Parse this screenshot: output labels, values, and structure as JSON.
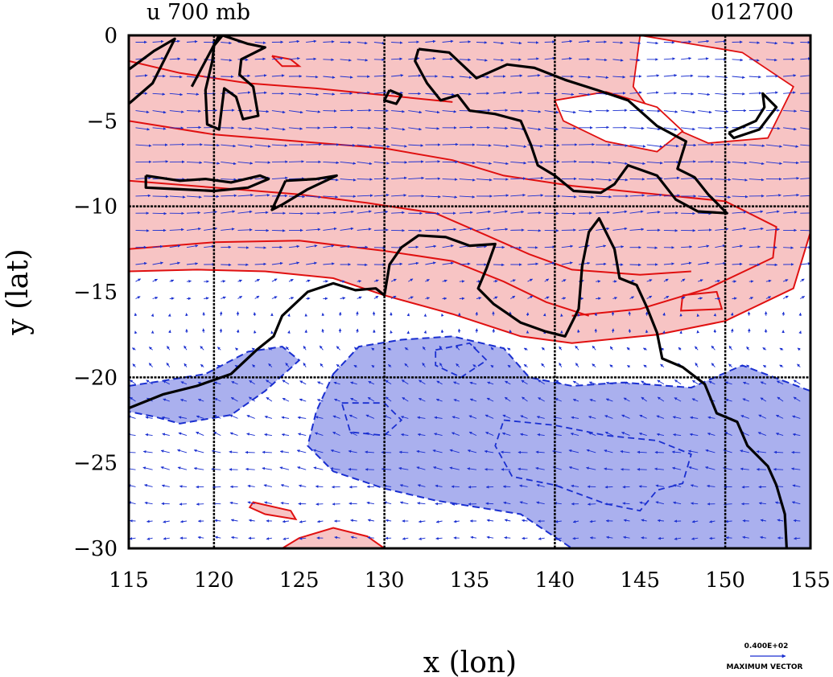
{
  "chart_data": {
    "type": "contour-vector-map",
    "title": "u 700 mb",
    "date_label": "012700",
    "xlabel": "x (lon)",
    "ylabel": "y (lat)",
    "xlim": [
      115,
      155
    ],
    "ylim": [
      -30,
      0
    ],
    "x_ticks": [
      115,
      120,
      125,
      130,
      135,
      140,
      145,
      150,
      155
    ],
    "x_tick_labels": [
      "115",
      "120",
      "125",
      "130",
      "135",
      "140",
      "145",
      "150",
      "155"
    ],
    "y_ticks": [
      0,
      -5,
      -10,
      -15,
      -20,
      -25,
      -30
    ],
    "y_tick_labels": [
      "0",
      "−5",
      "−10",
      "−15",
      "−20",
      "−25",
      "−30"
    ],
    "gridlines_x": [
      120,
      130,
      140,
      150
    ],
    "gridlines_y": [
      -10,
      -20
    ],
    "grid": true,
    "legend": {
      "vector_magnitude": "0.400E+02",
      "vector_label": "MAXIMUM VECTOR",
      "placement": "bottom-right"
    },
    "colors": {
      "positive_fill": "#f7c4c4",
      "positive_contour": "#e01010",
      "negative_fill": "#aab0ee",
      "negative_contour": "#1a2fd0",
      "vectors": "#1a2fd0",
      "coastline": "#000000",
      "grid": "#000000"
    },
    "positive_region": [
      [
        115,
        0
      ],
      [
        155,
        0
      ],
      [
        155,
        -11.5
      ],
      [
        154,
        -14.8
      ],
      [
        150,
        -16.7
      ],
      [
        146,
        -17.5
      ],
      [
        141,
        -18
      ],
      [
        138,
        -17.6
      ],
      [
        134,
        -16.3
      ],
      [
        130,
        -15.2
      ],
      [
        127,
        -14.2
      ],
      [
        123,
        -13.8
      ],
      [
        119,
        -13.7
      ],
      [
        115,
        -13.8
      ]
    ],
    "positive_patches": [
      [
        [
          145,
          0
        ],
        [
          151,
          -1
        ],
        [
          154,
          -3
        ],
        [
          152.5,
          -6
        ],
        [
          149,
          -6.3
        ],
        [
          146,
          -5
        ],
        [
          144.6,
          -3
        ]
      ],
      [
        [
          140,
          -3.8
        ],
        [
          143,
          -3.3
        ],
        [
          146,
          -4.2
        ],
        [
          147.5,
          -5.6
        ],
        [
          146,
          -6.8
        ],
        [
          143,
          -6.2
        ],
        [
          140.5,
          -5
        ]
      ]
    ],
    "negative_region": [
      [
        115,
        -20.5
      ],
      [
        117,
        -20.2
      ],
      [
        119.5,
        -19.8
      ],
      [
        122,
        -18.5
      ],
      [
        124,
        -18.2
      ],
      [
        125,
        -19
      ],
      [
        123,
        -20.8
      ],
      [
        121,
        -22.2
      ],
      [
        118,
        -22.7
      ],
      [
        116.5,
        -22.3
      ],
      [
        115,
        -22
      ]
    ],
    "negative_region_2": [
      [
        127,
        -19.8
      ],
      [
        128.5,
        -18.2
      ],
      [
        131,
        -17.8
      ],
      [
        134,
        -17.6
      ],
      [
        137,
        -18.3
      ],
      [
        138.5,
        -20
      ],
      [
        141,
        -20.5
      ],
      [
        144,
        -20.3
      ],
      [
        148,
        -20.6
      ],
      [
        151,
        -19.3
      ],
      [
        155,
        -20.8
      ],
      [
        155,
        -30
      ],
      [
        141,
        -30
      ],
      [
        138,
        -28
      ],
      [
        133,
        -27.2
      ],
      [
        130,
        -26.5
      ],
      [
        127,
        -25.5
      ],
      [
        125.5,
        -24
      ],
      [
        126,
        -22
      ]
    ],
    "positive_small": [
      [
        [
          122.3,
          -27.3
        ],
        [
          124.5,
          -27.8
        ],
        [
          124.8,
          -28.3
        ],
        [
          123,
          -28
        ],
        [
          122.1,
          -27.6
        ]
      ],
      [
        [
          124,
          -30
        ],
        [
          125,
          -29.4
        ],
        [
          127,
          -28.8
        ],
        [
          129,
          -29.3
        ],
        [
          130,
          -30
        ]
      ]
    ],
    "extra_red_contours": [
      [
        [
          115,
          -1.5
        ],
        [
          118,
          -2.2
        ],
        [
          122,
          -2.8
        ],
        [
          126,
          -3.1
        ],
        [
          130,
          -3.5
        ],
        [
          134,
          -3.9
        ]
      ],
      [
        [
          115,
          -5
        ],
        [
          120,
          -5.8
        ],
        [
          125,
          -6.2
        ],
        [
          130,
          -6.6
        ],
        [
          134,
          -7.3
        ],
        [
          137,
          -8.2
        ],
        [
          141,
          -8.8
        ],
        [
          146,
          -9.3
        ],
        [
          150,
          -9.7
        ],
        [
          153,
          -11.2
        ],
        [
          152.8,
          -13
        ],
        [
          149,
          -14.8
        ],
        [
          145,
          -16
        ],
        [
          141,
          -16.4
        ]
      ],
      [
        [
          115,
          -8.5
        ],
        [
          120,
          -8.9
        ],
        [
          125,
          -9.3
        ],
        [
          129,
          -9.8
        ],
        [
          133,
          -10.4
        ],
        [
          136,
          -11.7
        ],
        [
          138.5,
          -12.8
        ],
        [
          141,
          -13.7
        ],
        [
          145,
          -14
        ],
        [
          148,
          -13.8
        ]
      ],
      [
        [
          115,
          -12.5
        ],
        [
          120,
          -12.1
        ],
        [
          125,
          -12
        ],
        [
          130,
          -12.6
        ],
        [
          134,
          -13.2
        ],
        [
          137,
          -14.4
        ],
        [
          139.5,
          -15.6
        ],
        [
          142,
          -16.4
        ]
      ],
      [
        [
          147.5,
          -15.2
        ],
        [
          149.5,
          -15
        ],
        [
          149.8,
          -16
        ],
        [
          147.4,
          -16.1
        ],
        [
          147.5,
          -15.2
        ]
      ],
      [
        [
          123.4,
          -1.2
        ],
        [
          124.5,
          -1.4
        ],
        [
          125,
          -1.8
        ],
        [
          124,
          -1.8
        ],
        [
          123.4,
          -1.2
        ]
      ]
    ],
    "extra_blue_contours": [
      [
        [
          133,
          -18.4
        ],
        [
          135,
          -18
        ],
        [
          136,
          -19
        ],
        [
          134.5,
          -20
        ],
        [
          133,
          -19.3
        ],
        [
          133,
          -18.4
        ]
      ],
      [
        [
          137,
          -22.5
        ],
        [
          140,
          -22.8
        ],
        [
          143,
          -23.4
        ],
        [
          146,
          -23.7
        ],
        [
          148,
          -24.5
        ],
        [
          147.5,
          -26.2
        ],
        [
          146,
          -26.6
        ],
        [
          145,
          -27.8
        ],
        [
          143,
          -27.4
        ],
        [
          140,
          -26.3
        ],
        [
          137.5,
          -25.8
        ],
        [
          136.5,
          -24
        ],
        [
          137,
          -22.5
        ]
      ],
      [
        [
          127.5,
          -21.5
        ],
        [
          130,
          -21.5
        ],
        [
          131,
          -22.5
        ],
        [
          130,
          -23.4
        ],
        [
          128,
          -23.2
        ],
        [
          127.5,
          -21.5
        ]
      ]
    ],
    "coastlines": [
      [
        [
          115,
          -21.8
        ],
        [
          117,
          -21
        ],
        [
          119,
          -20.5
        ],
        [
          121,
          -19.8
        ],
        [
          122.5,
          -18.4
        ],
        [
          123.5,
          -17.6
        ],
        [
          124,
          -16.4
        ],
        [
          125.5,
          -15
        ],
        [
          127,
          -14.5
        ],
        [
          128.3,
          -14.9
        ],
        [
          129.5,
          -14.8
        ],
        [
          130,
          -15.2
        ],
        [
          130.3,
          -13.4
        ],
        [
          131,
          -12.4
        ],
        [
          132,
          -11.7
        ],
        [
          133.6,
          -11.8
        ],
        [
          135,
          -12.3
        ],
        [
          136.5,
          -12.2
        ],
        [
          136,
          -13.6
        ],
        [
          135.5,
          -14.8
        ],
        [
          136.4,
          -15.7
        ],
        [
          138,
          -16.8
        ],
        [
          139.4,
          -17.3
        ],
        [
          140.6,
          -17.6
        ],
        [
          141.4,
          -16
        ],
        [
          141.6,
          -13.5
        ],
        [
          142,
          -11.5
        ],
        [
          142.6,
          -10.7
        ],
        [
          143.5,
          -12.5
        ],
        [
          143.8,
          -14.2
        ],
        [
          144.8,
          -14.6
        ],
        [
          145.4,
          -15.9
        ],
        [
          146,
          -17.4
        ],
        [
          146.3,
          -18.9
        ],
        [
          147.5,
          -19.4
        ],
        [
          148.8,
          -20.4
        ],
        [
          149.5,
          -22.1
        ],
        [
          150.7,
          -22.6
        ],
        [
          151.3,
          -24
        ],
        [
          152.5,
          -25.2
        ],
        [
          153,
          -26.3
        ],
        [
          153.5,
          -28
        ],
        [
          153.6,
          -30
        ]
      ],
      [
        [
          124.2,
          -8.5
        ],
        [
          126,
          -8.4
        ],
        [
          127.2,
          -8.2
        ],
        [
          125.5,
          -9
        ],
        [
          124,
          -9.9
        ],
        [
          123.4,
          -10.2
        ],
        [
          124.2,
          -8.5
        ]
      ],
      [
        [
          116,
          -8.2
        ],
        [
          118,
          -8.5
        ],
        [
          119.5,
          -8.4
        ],
        [
          121,
          -8.6
        ],
        [
          122.7,
          -8.2
        ],
        [
          123.2,
          -8.4
        ],
        [
          122,
          -8.9
        ],
        [
          120,
          -9.1
        ],
        [
          118,
          -9
        ],
        [
          116,
          -8.9
        ],
        [
          116,
          -8.2
        ]
      ],
      [
        [
          120,
          -0.6
        ],
        [
          120.5,
          0
        ],
        [
          122,
          -0.5
        ],
        [
          123,
          -0.7
        ],
        [
          121.6,
          -1.4
        ],
        [
          121.5,
          -2.3
        ],
        [
          122.3,
          -3
        ],
        [
          122.6,
          -4.7
        ],
        [
          121.7,
          -4.9
        ],
        [
          121.3,
          -3.6
        ],
        [
          120.6,
          -3.1
        ],
        [
          120.3,
          -5.5
        ],
        [
          119.6,
          -5.2
        ],
        [
          119.5,
          -3.2
        ],
        [
          119.9,
          -1.5
        ],
        [
          120,
          -0.6
        ]
      ],
      [
        [
          115,
          -2
        ],
        [
          116.5,
          -0.9
        ],
        [
          117.7,
          -0.2
        ],
        [
          116.4,
          -2.8
        ],
        [
          115,
          -4
        ]
      ],
      [
        [
          132,
          -0.8
        ],
        [
          133.8,
          -1
        ],
        [
          135.4,
          -2.5
        ],
        [
          137.2,
          -1.7
        ],
        [
          138.8,
          -1.9
        ],
        [
          140.6,
          -2.6
        ],
        [
          142.5,
          -3.2
        ],
        [
          144.3,
          -3.8
        ],
        [
          146,
          -5.3
        ],
        [
          147.7,
          -6.2
        ],
        [
          147.2,
          -7.8
        ],
        [
          148.2,
          -8.3
        ],
        [
          149,
          -9.3
        ],
        [
          150.1,
          -10.4
        ],
        [
          148.4,
          -10.3
        ],
        [
          147.1,
          -9.6
        ],
        [
          146,
          -8.2
        ],
        [
          144.3,
          -7.6
        ],
        [
          143.5,
          -8.7
        ],
        [
          142.7,
          -9.2
        ],
        [
          141.1,
          -9.1
        ],
        [
          140,
          -8.2
        ],
        [
          139,
          -7.6
        ],
        [
          138.6,
          -6.4
        ],
        [
          138,
          -5
        ],
        [
          136.5,
          -4.6
        ],
        [
          135,
          -4.4
        ],
        [
          134.3,
          -3.5
        ],
        [
          133.3,
          -3.8
        ],
        [
          132.5,
          -2.8
        ],
        [
          131.8,
          -1.5
        ],
        [
          132,
          -0.8
        ]
      ],
      [
        [
          150.2,
          -5.7
        ],
        [
          151.8,
          -5
        ],
        [
          152.3,
          -4.2
        ],
        [
          152.2,
          -3.4
        ],
        [
          153,
          -4.2
        ],
        [
          152,
          -5.5
        ],
        [
          150.5,
          -6
        ],
        [
          150.2,
          -5.7
        ]
      ],
      [
        [
          130.3,
          -3.2
        ],
        [
          131,
          -3.5
        ],
        [
          130.7,
          -4
        ],
        [
          130,
          -3.8
        ],
        [
          130.3,
          -3.2
        ]
      ],
      [
        [
          118.7,
          -3
        ],
        [
          120.3,
          0
        ]
      ]
    ],
    "wind_field": {
      "rows": [
        {
          "lat": -0.5,
          "u": 7,
          "v": 0
        },
        {
          "lat": -2.5,
          "u": 8,
          "v": 0
        },
        {
          "lat": -4.5,
          "u": 9,
          "v": -0.5
        },
        {
          "lat": -6.5,
          "u": 10,
          "v": -0.5
        },
        {
          "lat": -8.5,
          "u": 10,
          "v": 0
        },
        {
          "lat": -10.5,
          "u": 9,
          "v": 0.5
        },
        {
          "lat": -12.5,
          "u": 7,
          "v": 0.5
        },
        {
          "lat": -14.5,
          "u": 3,
          "v": 1
        },
        {
          "lat": -16.5,
          "u": 0,
          "v": 2
        },
        {
          "lat": -18.5,
          "u": -2,
          "v": 2
        },
        {
          "lat": -20.5,
          "u": -4,
          "v": 2
        },
        {
          "lat": -22.5,
          "u": -5,
          "v": 1.5
        },
        {
          "lat": -24.5,
          "u": -6,
          "v": 1
        },
        {
          "lat": -26.5,
          "u": -5,
          "v": 0.5
        },
        {
          "lat": -28.5,
          "u": -4,
          "v": 0
        }
      ]
    }
  }
}
